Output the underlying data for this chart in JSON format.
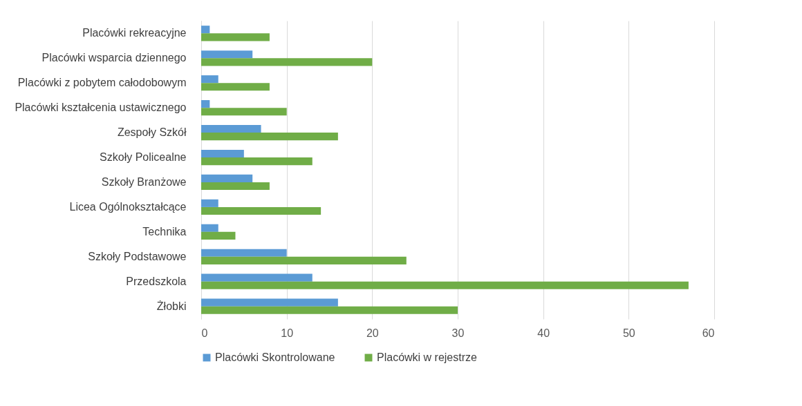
{
  "chart_data": {
    "type": "bar",
    "orientation": "horizontal",
    "categories": [
      "Placówki rekreacyjne",
      "Placówki wsparcia dziennego",
      "Placówki z pobytem całodobowym",
      "Placówki kształcenia ustawicznego",
      "Zespoły Szkół",
      "Szkoły Policealne",
      "Szkoły Branżowe",
      "Licea Ogólnokształcące",
      "Technika",
      "Szkoły Podstawowe",
      "Przedszkola",
      "Żłobki"
    ],
    "series": [
      {
        "name": "Placówki Skontrolowane",
        "color": "#5b9bd5",
        "values": [
          1,
          6,
          2,
          1,
          7,
          5,
          6,
          2,
          2,
          10,
          13,
          16
        ]
      },
      {
        "name": "Placówki w rejestrze",
        "color": "#70ad47",
        "values": [
          8,
          20,
          8,
          10,
          16,
          13,
          8,
          14,
          4,
          24,
          57,
          30
        ]
      }
    ],
    "xlim": [
      0,
      60
    ],
    "xticks": [
      0,
      10,
      20,
      30,
      40,
      50,
      60
    ],
    "grid": "x",
    "legend": "bottom"
  }
}
